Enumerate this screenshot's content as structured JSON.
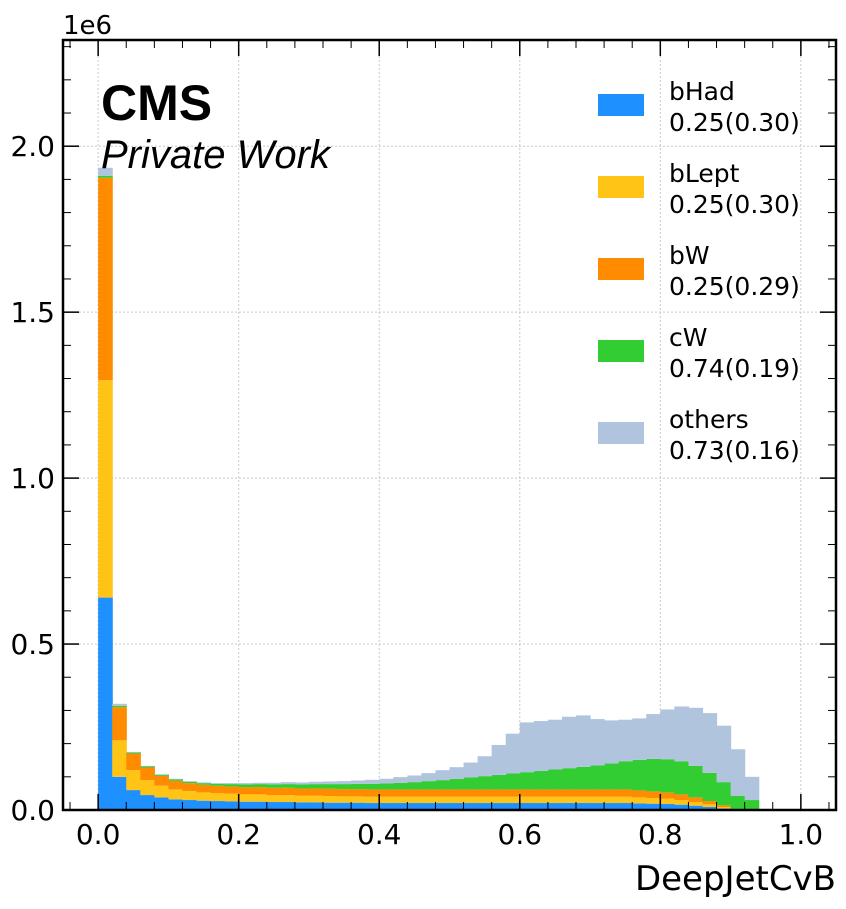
{
  "chart_data": {
    "type": "stacked-histogram",
    "xlabel": "DeepJetCvB",
    "ylabel": "",
    "y_scale_label": "1e6",
    "experiment": "CMS",
    "experiment_sub": "Private Work",
    "xlim": [
      -0.05,
      1.05
    ],
    "ylim": [
      0,
      2.32
    ],
    "x_ticks": [
      0.0,
      0.2,
      0.4,
      0.6,
      0.8,
      1.0
    ],
    "x_tick_labels": [
      "0.0",
      "0.2",
      "0.4",
      "0.6",
      "0.8",
      "1.0"
    ],
    "y_ticks": [
      0.0,
      0.5,
      1.0,
      1.5,
      2.0
    ],
    "y_tick_labels": [
      "0.0",
      "0.5",
      "1.0",
      "1.5",
      "2.0"
    ],
    "grid": true,
    "legend_position": "top-right",
    "bin_start": 0.0,
    "bin_width": 0.02,
    "series": [
      {
        "name": "bHad",
        "legend_values": "0.25(0.30)",
        "color": "#1E90FF",
        "values": [
          0.64,
          0.1,
          0.06,
          0.045,
          0.038,
          0.032,
          0.03,
          0.028,
          0.027,
          0.026,
          0.025,
          0.025,
          0.024,
          0.024,
          0.023,
          0.023,
          0.022,
          0.022,
          0.022,
          0.021,
          0.021,
          0.021,
          0.021,
          0.021,
          0.021,
          0.021,
          0.021,
          0.021,
          0.021,
          0.021,
          0.021,
          0.021,
          0.021,
          0.021,
          0.021,
          0.021,
          0.021,
          0.021,
          0.02,
          0.019,
          0.018,
          0.016,
          0.013,
          0.009,
          0.005,
          0.001,
          0.0,
          0.0,
          0.0,
          0.0
        ]
      },
      {
        "name": "bLept",
        "legend_values": "0.25(0.30)",
        "color": "#FFC416",
        "values": [
          0.655,
          0.11,
          0.06,
          0.045,
          0.035,
          0.03,
          0.027,
          0.025,
          0.024,
          0.023,
          0.022,
          0.022,
          0.021,
          0.021,
          0.02,
          0.02,
          0.02,
          0.019,
          0.019,
          0.019,
          0.019,
          0.019,
          0.019,
          0.019,
          0.019,
          0.019,
          0.019,
          0.019,
          0.019,
          0.019,
          0.019,
          0.019,
          0.019,
          0.019,
          0.019,
          0.019,
          0.019,
          0.019,
          0.018,
          0.017,
          0.016,
          0.014,
          0.011,
          0.008,
          0.004,
          0.001,
          0.0,
          0.0,
          0.0,
          0.0
        ]
      },
      {
        "name": "bW",
        "legend_values": "0.25(0.29)",
        "color": "#FF8C00",
        "values": [
          0.61,
          0.1,
          0.05,
          0.038,
          0.03,
          0.026,
          0.024,
          0.023,
          0.022,
          0.022,
          0.022,
          0.022,
          0.022,
          0.022,
          0.022,
          0.022,
          0.022,
          0.022,
          0.022,
          0.022,
          0.022,
          0.022,
          0.022,
          0.022,
          0.022,
          0.022,
          0.022,
          0.022,
          0.022,
          0.022,
          0.022,
          0.022,
          0.022,
          0.022,
          0.022,
          0.022,
          0.022,
          0.022,
          0.021,
          0.02,
          0.019,
          0.017,
          0.014,
          0.01,
          0.005,
          0.001,
          0.0,
          0.0,
          0.0,
          0.0
        ]
      },
      {
        "name": "cW",
        "legend_values": "0.74(0.19)",
        "color": "#32CD32",
        "values": [
          0.006,
          0.004,
          0.003,
          0.003,
          0.003,
          0.004,
          0.004,
          0.005,
          0.006,
          0.007,
          0.008,
          0.009,
          0.01,
          0.011,
          0.012,
          0.013,
          0.014,
          0.015,
          0.016,
          0.017,
          0.018,
          0.02,
          0.022,
          0.025,
          0.028,
          0.032,
          0.036,
          0.04,
          0.044,
          0.048,
          0.052,
          0.056,
          0.06,
          0.064,
          0.068,
          0.072,
          0.078,
          0.085,
          0.092,
          0.098,
          0.1,
          0.1,
          0.095,
          0.085,
          0.07,
          0.04,
          0.03,
          0.0,
          0.0,
          0.0
        ]
      },
      {
        "name": "others",
        "legend_values": "0.73(0.16)",
        "color": "#B0C4DE",
        "values": [
          0.024,
          0.006,
          0.002,
          0.002,
          0.002,
          0.002,
          0.002,
          0.002,
          0.002,
          0.003,
          0.004,
          0.004,
          0.005,
          0.006,
          0.006,
          0.007,
          0.008,
          0.009,
          0.01,
          0.012,
          0.014,
          0.017,
          0.02,
          0.024,
          0.03,
          0.035,
          0.045,
          0.06,
          0.09,
          0.12,
          0.15,
          0.15,
          0.15,
          0.155,
          0.155,
          0.14,
          0.13,
          0.125,
          0.125,
          0.135,
          0.15,
          0.165,
          0.175,
          0.18,
          0.17,
          0.14,
          0.07,
          0.0,
          0.0,
          0.0
        ]
      }
    ]
  }
}
